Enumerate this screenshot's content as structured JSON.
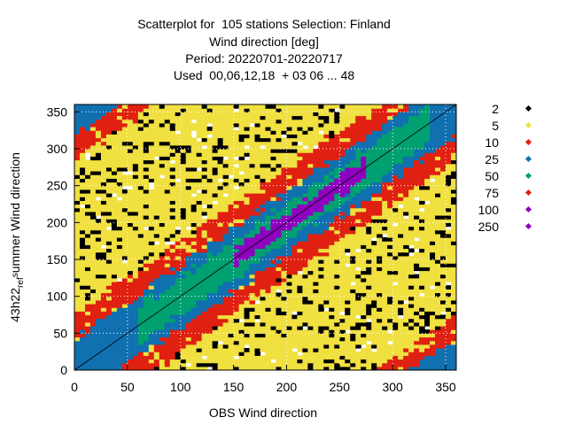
{
  "title": {
    "line1": "Scatterplot for  105 stations Selection: Finland",
    "line2": "Wind direction [deg]",
    "line3": "Period: 20220701-20220717",
    "line4": "Used  00,06,12,18  + 03 06 ... 48"
  },
  "chart_data": {
    "type": "heatmap",
    "title": "Scatterplot for  105 stations Selection: Finland",
    "xlabel": "OBS Wind direction",
    "ylabel_parts": [
      "43h22",
      "ref",
      "s",
      "ummer Wind direction"
    ],
    "xlim": [
      0,
      360
    ],
    "ylim": [
      0,
      360
    ],
    "x_ticks": [
      0,
      50,
      100,
      150,
      200,
      250,
      300,
      350
    ],
    "y_ticks": [
      0,
      50,
      100,
      150,
      200,
      250,
      300,
      350
    ],
    "grid": true,
    "diagonal_line": true,
    "legend_placement": "right",
    "legend": [
      {
        "label": "2",
        "color": "#000000"
      },
      {
        "label": "5",
        "color": "#f0e040"
      },
      {
        "label": "10",
        "color": "#e02010"
      },
      {
        "label": "25",
        "color": "#1070b0"
      },
      {
        "label": "50",
        "color": "#00a070"
      },
      {
        "label": "75",
        "color": "#e02010"
      },
      {
        "label": "100",
        "color": "#9000c0"
      },
      {
        "label": "250",
        "color": "#9000c0"
      }
    ],
    "density_bands": [
      {
        "min_dist": 0,
        "max_dist": 12,
        "color": "#9000c0",
        "x_range": [
          150,
          270
        ]
      },
      {
        "min_dist": 0,
        "max_dist": 25,
        "color": "#00a070",
        "x_range": [
          60,
          330
        ]
      },
      {
        "min_dist": 0,
        "max_dist": 42,
        "color": "#1070b0",
        "x_range": [
          0,
          360
        ]
      },
      {
        "min_dist": 0,
        "max_dist": 75,
        "color": "#e02010",
        "x_range": [
          0,
          360
        ]
      },
      {
        "min_dist": 0,
        "max_dist": 360,
        "color": "#f0e040",
        "x_range": [
          0,
          360
        ]
      }
    ]
  }
}
